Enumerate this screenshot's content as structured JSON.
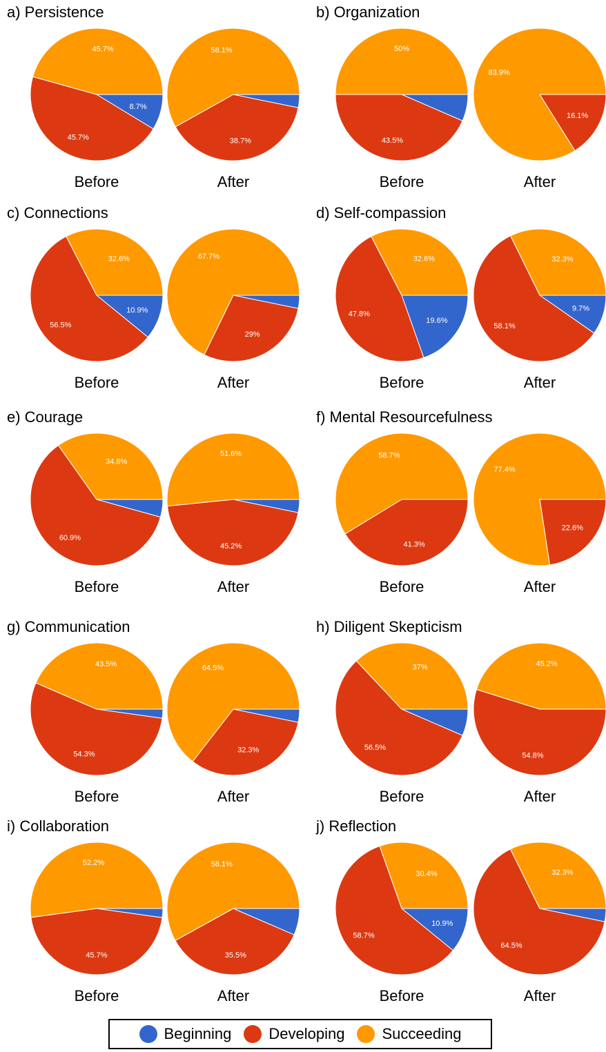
{
  "colors": {
    "Beginning": "#3366cc",
    "Developing": "#dc3912",
    "Succeeding": "#ff9900"
  },
  "legend": [
    {
      "label": "Beginning",
      "color": "#3366cc"
    },
    {
      "label": "Developing",
      "color": "#dc3912"
    },
    {
      "label": "Succeeding",
      "color": "#ff9900"
    }
  ],
  "chart_data": [
    {
      "type": "pie",
      "title": "a) Persistence",
      "categories": [
        "Beginning",
        "Developing",
        "Succeeding"
      ],
      "pies": [
        {
          "name": "Before",
          "values": [
            8.7,
            45.7,
            45.7
          ],
          "labels": [
            "8.7%",
            "45.7%",
            "45.7%"
          ]
        },
        {
          "name": "After",
          "values": [
            3.2,
            38.7,
            58.1
          ],
          "labels": [
            "",
            "38.7%",
            "58.1%"
          ]
        }
      ]
    },
    {
      "type": "pie",
      "title": "b) Organization",
      "categories": [
        "Beginning",
        "Developing",
        "Succeeding"
      ],
      "pies": [
        {
          "name": "Before",
          "values": [
            6.5,
            43.5,
            50
          ],
          "labels": [
            "",
            "43.5%",
            "50%"
          ]
        },
        {
          "name": "After",
          "values": [
            0,
            16.1,
            83.9
          ],
          "labels": [
            "",
            "16.1%",
            "83.9%"
          ]
        }
      ]
    },
    {
      "type": "pie",
      "title": "c) Connections",
      "categories": [
        "Beginning",
        "Developing",
        "Succeeding"
      ],
      "pies": [
        {
          "name": "Before",
          "values": [
            10.9,
            56.5,
            32.6
          ],
          "labels": [
            "10.9%",
            "56.5%",
            "32.6%"
          ]
        },
        {
          "name": "After",
          "values": [
            3.2,
            29,
            67.7
          ],
          "labels": [
            "",
            "29%",
            "67.7%"
          ]
        }
      ]
    },
    {
      "type": "pie",
      "title": "d) Self-compassion",
      "categories": [
        "Beginning",
        "Developing",
        "Succeeding"
      ],
      "pies": [
        {
          "name": "Before",
          "values": [
            19.6,
            47.8,
            32.6
          ],
          "labels": [
            "19.6%",
            "47.8%",
            "32.6%"
          ]
        },
        {
          "name": "After",
          "values": [
            9.7,
            58.1,
            32.3
          ],
          "labels": [
            "9.7%",
            "58.1%",
            "32.3%"
          ]
        }
      ]
    },
    {
      "type": "pie",
      "title": "e) Courage",
      "categories": [
        "Beginning",
        "Developing",
        "Succeeding"
      ],
      "pies": [
        {
          "name": "Before",
          "values": [
            4.3,
            60.9,
            34.8
          ],
          "labels": [
            "",
            "60.9%",
            "34.8%"
          ]
        },
        {
          "name": "After",
          "values": [
            3.2,
            45.2,
            51.6
          ],
          "labels": [
            "",
            "45.2%",
            "51.6%"
          ]
        }
      ]
    },
    {
      "type": "pie",
      "title": "f) Mental Resourcefulness",
      "categories": [
        "Beginning",
        "Developing",
        "Succeeding"
      ],
      "pies": [
        {
          "name": "Before",
          "values": [
            0,
            41.3,
            58.7
          ],
          "labels": [
            "",
            "41.3%",
            "58.7%"
          ]
        },
        {
          "name": "After",
          "values": [
            0,
            22.6,
            77.4
          ],
          "labels": [
            "",
            "22.6%",
            "77.4%"
          ]
        }
      ]
    },
    {
      "type": "pie",
      "title": "g) Communication",
      "categories": [
        "Beginning",
        "Developing",
        "Succeeding"
      ],
      "pies": [
        {
          "name": "Before",
          "values": [
            2.2,
            54.3,
            43.5
          ],
          "labels": [
            "",
            "54.3%",
            "43.5%"
          ]
        },
        {
          "name": "After",
          "values": [
            3.2,
            32.3,
            64.5
          ],
          "labels": [
            "",
            "32.3%",
            "64.5%"
          ]
        }
      ]
    },
    {
      "type": "pie",
      "title": "h) Diligent Skepticism",
      "categories": [
        "Beginning",
        "Developing",
        "Succeeding"
      ],
      "pies": [
        {
          "name": "Before",
          "values": [
            6.5,
            56.5,
            37
          ],
          "labels": [
            "",
            "56.5%",
            "37%"
          ]
        },
        {
          "name": "After",
          "values": [
            0,
            54.8,
            45.2
          ],
          "labels": [
            "",
            "54.8%",
            "45.2%"
          ]
        }
      ]
    },
    {
      "type": "pie",
      "title": "i) Collaboration",
      "categories": [
        "Beginning",
        "Developing",
        "Succeeding"
      ],
      "pies": [
        {
          "name": "Before",
          "values": [
            2.2,
            45.7,
            52.2
          ],
          "labels": [
            "",
            "45.7%",
            "52.2%"
          ]
        },
        {
          "name": "After",
          "values": [
            6.5,
            35.5,
            58.1
          ],
          "labels": [
            "",
            "35.5%",
            "58.1%"
          ]
        }
      ]
    },
    {
      "type": "pie",
      "title": "j) Reflection",
      "categories": [
        "Beginning",
        "Developing",
        "Succeeding"
      ],
      "pies": [
        {
          "name": "Before",
          "values": [
            10.9,
            58.7,
            30.4
          ],
          "labels": [
            "10.9%",
            "58.7%",
            "30.4%"
          ]
        },
        {
          "name": "After",
          "values": [
            3.2,
            64.5,
            32.3
          ],
          "labels": [
            "",
            "64.5%",
            "32.3%"
          ]
        }
      ]
    }
  ]
}
